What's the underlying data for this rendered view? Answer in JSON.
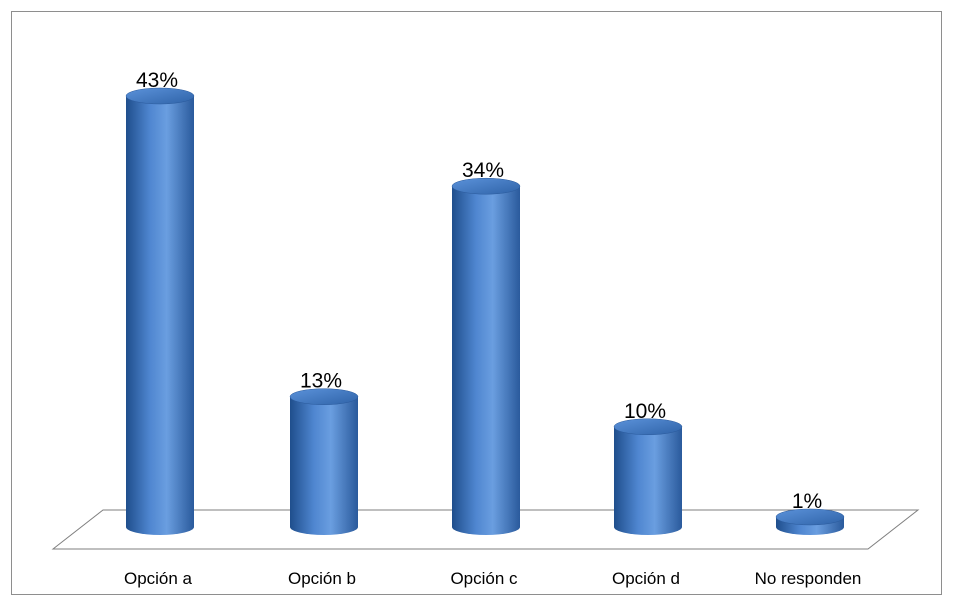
{
  "chart_data": {
    "type": "bar",
    "style": "3d-cylinder",
    "categories": [
      "Opción a",
      "Opción b",
      "Opción c",
      "Opción d",
      "No responden"
    ],
    "values": [
      43,
      13,
      34,
      10,
      1
    ],
    "data_labels": [
      "43%",
      "13%",
      "34%",
      "10%",
      "1%"
    ],
    "unit": "%",
    "title": "",
    "xlabel": "",
    "ylabel": "",
    "ylim": [
      0,
      43
    ],
    "grid": false,
    "legend": "none",
    "colors": {
      "bar_dark": "#1f4e8c",
      "bar_mid": "#3d76c2",
      "bar_light": "#6a9ee0",
      "top_fill": "#4a82cc",
      "floor_stroke": "#7f7f7f"
    }
  }
}
